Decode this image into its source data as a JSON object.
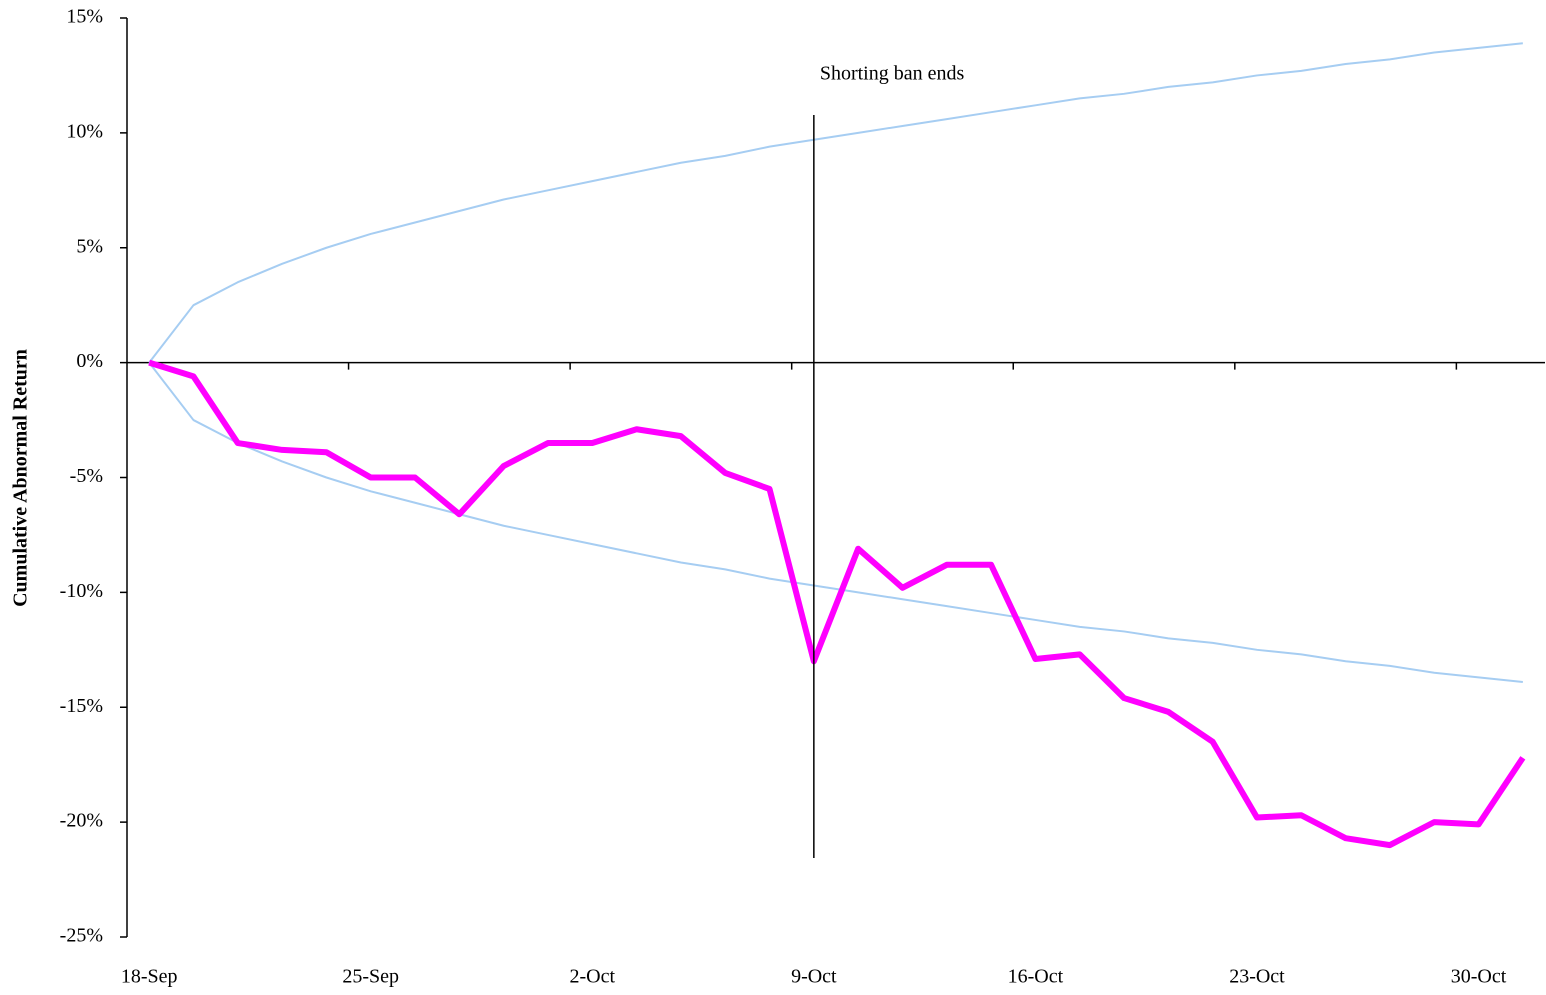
{
  "chart_data": {
    "type": "line",
    "y_label": "Cumulative Abnormal Return",
    "annotation": {
      "text": "Shorting ban ends",
      "x": "9-Oct"
    },
    "categories": [
      "18-Sep",
      null,
      null,
      null,
      null,
      "25-Sep",
      null,
      null,
      null,
      null,
      "2-Oct",
      null,
      null,
      null,
      null,
      "9-Oct",
      null,
      null,
      null,
      null,
      "16-Oct",
      null,
      null,
      null,
      null,
      "23-Oct",
      null,
      null,
      null,
      null,
      "30-Oct",
      null
    ],
    "series": [
      {
        "color": "#a6cdf2",
        "width": 2,
        "values": [
          0,
          2.5,
          3.5,
          4.3,
          5.0,
          5.6,
          6.1,
          6.6,
          7.1,
          7.5,
          7.9,
          8.3,
          8.7,
          9.0,
          9.4,
          9.7,
          10.0,
          10.3,
          10.6,
          10.9,
          11.2,
          11.5,
          11.7,
          12.0,
          12.2,
          12.5,
          12.7,
          13.0,
          13.2,
          13.5,
          13.7,
          13.9
        ]
      },
      {
        "color": "#a6cdf2",
        "width": 2,
        "values": [
          0,
          -2.5,
          -3.5,
          -4.3,
          -5.0,
          -5.6,
          -6.1,
          -6.6,
          -7.1,
          -7.5,
          -7.9,
          -8.3,
          -8.7,
          -9.0,
          -9.4,
          -9.7,
          -10.0,
          -10.3,
          -10.6,
          -10.9,
          -11.2,
          -11.5,
          -11.7,
          -12.0,
          -12.2,
          -12.5,
          -12.7,
          -13.0,
          -13.2,
          -13.5,
          -13.7,
          -13.9
        ]
      },
      {
        "color": "#ff00ff",
        "width": 6,
        "values": [
          0,
          -0.6,
          -3.5,
          -3.8,
          -3.9,
          -5.0,
          -5.0,
          -6.6,
          -4.5,
          -3.5,
          -3.5,
          -2.9,
          -3.2,
          -4.8,
          -5.5,
          -13.0,
          -8.1,
          -9.8,
          -8.8,
          -8.8,
          -12.9,
          -12.7,
          -14.6,
          -15.2,
          -16.5,
          -19.8,
          -19.7,
          -20.7,
          -21.0,
          -20.0,
          -20.1,
          -17.2
        ]
      }
    ],
    "ylim": [
      -25,
      15
    ],
    "yticks": [
      {
        "value": -25,
        "label": "-25%"
      },
      {
        "value": -20,
        "label": "-20%"
      },
      {
        "value": -15,
        "label": "-15%"
      },
      {
        "value": -10,
        "label": "-10%"
      },
      {
        "value": -5,
        "label": "-5%"
      },
      {
        "value": 0,
        "label": "0%"
      },
      {
        "value": 5,
        "label": "5%"
      },
      {
        "value": 10,
        "label": "10%"
      },
      {
        "value": 15,
        "label": "15%"
      }
    ]
  }
}
